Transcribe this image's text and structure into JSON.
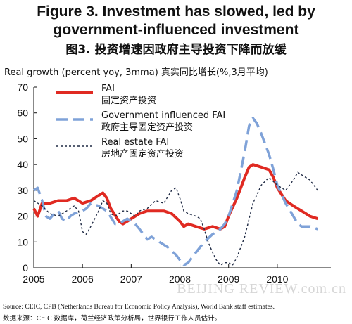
{
  "header": {
    "title_line1": "Figure 3. Investment has slowed, led by",
    "title_line2": "government-influenced investment",
    "title_cn": "图3. 投资增速因政府主导投资下降而放缓"
  },
  "axis": {
    "ylabel": "Real growth (percent yoy, 3mma)  真实同比增长(%,3月平均)"
  },
  "footer": {
    "source_en": "Source: CEIC, CPB (Netherlands Bureau for Economic Policy Analysis), World Bank staff estimates.",
    "source_cn": "数据来源：CEIC 数据库，荷兰经济政策分析局，世界银行工作人员估计。",
    "watermark": "BEIJING REVIEW.com.cn"
  },
  "chart_data": {
    "type": "line",
    "ylabel": "Real growth (percent yoy, 3mma)  真实同比增长(%,3月平均)",
    "xlabel": "",
    "ylim": [
      0,
      70
    ],
    "yticks": [
      0,
      10,
      20,
      30,
      40,
      50,
      60,
      70
    ],
    "xlim": [
      2005,
      2011.1
    ],
    "xticks": [
      2005,
      2006,
      2007,
      2008,
      2009,
      2010
    ],
    "grid": false,
    "legend_position": "top-left",
    "series": [
      {
        "name": "FAI",
        "name_cn": "固定资产投资",
        "color": "#e02a22",
        "style": "solid",
        "points": [
          [
            2005.0,
            23
          ],
          [
            2005.08,
            20
          ],
          [
            2005.17,
            25
          ],
          [
            2005.33,
            25
          ],
          [
            2005.5,
            26
          ],
          [
            2005.67,
            26
          ],
          [
            2005.83,
            27
          ],
          [
            2006.0,
            25
          ],
          [
            2006.17,
            26
          ],
          [
            2006.33,
            28
          ],
          [
            2006.42,
            29
          ],
          [
            2006.5,
            27
          ],
          [
            2006.58,
            23
          ],
          [
            2006.75,
            18
          ],
          [
            2006.83,
            17
          ],
          [
            2006.92,
            18
          ],
          [
            2007.0,
            19
          ],
          [
            2007.17,
            21
          ],
          [
            2007.33,
            22
          ],
          [
            2007.5,
            22
          ],
          [
            2007.67,
            22
          ],
          [
            2007.83,
            21
          ],
          [
            2008.0,
            18
          ],
          [
            2008.08,
            16
          ],
          [
            2008.17,
            17
          ],
          [
            2008.33,
            16
          ],
          [
            2008.5,
            15
          ],
          [
            2008.67,
            16
          ],
          [
            2008.83,
            15
          ],
          [
            2008.92,
            16
          ],
          [
            2009.0,
            20
          ],
          [
            2009.17,
            27
          ],
          [
            2009.33,
            35
          ],
          [
            2009.42,
            39
          ],
          [
            2009.5,
            40
          ],
          [
            2009.67,
            39
          ],
          [
            2009.83,
            38
          ],
          [
            2009.92,
            35
          ],
          [
            2010.0,
            31
          ],
          [
            2010.17,
            26
          ],
          [
            2010.33,
            24
          ],
          [
            2010.5,
            22
          ],
          [
            2010.67,
            20
          ],
          [
            2010.83,
            19
          ]
        ]
      },
      {
        "name": "Government influenced FAI",
        "name_cn": "政府主导固定资产投资",
        "color": "#7fa2d8",
        "style": "dash",
        "points": [
          [
            2005.0,
            30
          ],
          [
            2005.08,
            31
          ],
          [
            2005.17,
            26
          ],
          [
            2005.25,
            20
          ],
          [
            2005.33,
            19
          ],
          [
            2005.42,
            21
          ],
          [
            2005.5,
            22
          ],
          [
            2005.58,
            19
          ],
          [
            2005.67,
            18
          ],
          [
            2005.75,
            20
          ],
          [
            2005.83,
            21
          ],
          [
            2006.0,
            22
          ],
          [
            2006.08,
            23
          ],
          [
            2006.17,
            25
          ],
          [
            2006.33,
            24
          ],
          [
            2006.5,
            22
          ],
          [
            2006.67,
            17
          ],
          [
            2006.75,
            17
          ],
          [
            2006.83,
            18
          ],
          [
            2006.92,
            19
          ],
          [
            2007.0,
            18
          ],
          [
            2007.08,
            17
          ],
          [
            2007.17,
            15
          ],
          [
            2007.25,
            13
          ],
          [
            2007.33,
            11
          ],
          [
            2007.42,
            12
          ],
          [
            2007.58,
            10
          ],
          [
            2007.75,
            8
          ],
          [
            2007.92,
            5
          ],
          [
            2008.0,
            3
          ],
          [
            2008.08,
            1
          ],
          [
            2008.17,
            2
          ],
          [
            2008.33,
            6
          ],
          [
            2008.5,
            10
          ],
          [
            2008.67,
            13
          ],
          [
            2008.83,
            15
          ],
          [
            2008.92,
            17
          ],
          [
            2009.0,
            20
          ],
          [
            2009.17,
            30
          ],
          [
            2009.33,
            45
          ],
          [
            2009.42,
            55
          ],
          [
            2009.5,
            58
          ],
          [
            2009.58,
            56
          ],
          [
            2009.67,
            52
          ],
          [
            2009.83,
            44
          ],
          [
            2009.92,
            38
          ],
          [
            2010.0,
            32
          ],
          [
            2010.17,
            25
          ],
          [
            2010.33,
            20
          ],
          [
            2010.42,
            17
          ],
          [
            2010.5,
            16
          ],
          [
            2010.67,
            16
          ],
          [
            2010.83,
            15
          ]
        ]
      },
      {
        "name": "Real estate FAI",
        "name_cn": "房地产固定资产投资",
        "color": "#1f2a44",
        "style": "dot",
        "points": [
          [
            2005.0,
            26
          ],
          [
            2005.17,
            24
          ],
          [
            2005.33,
            21
          ],
          [
            2005.5,
            20
          ],
          [
            2005.67,
            22
          ],
          [
            2005.83,
            24
          ],
          [
            2005.92,
            22
          ],
          [
            2006.0,
            14
          ],
          [
            2006.08,
            13
          ],
          [
            2006.17,
            16
          ],
          [
            2006.25,
            19
          ],
          [
            2006.33,
            22
          ],
          [
            2006.42,
            26
          ],
          [
            2006.5,
            25
          ],
          [
            2006.58,
            21
          ],
          [
            2006.67,
            20
          ],
          [
            2006.75,
            21
          ],
          [
            2006.83,
            22
          ],
          [
            2006.92,
            22
          ],
          [
            2007.0,
            21
          ],
          [
            2007.08,
            20
          ],
          [
            2007.17,
            22
          ],
          [
            2007.33,
            23
          ],
          [
            2007.5,
            26
          ],
          [
            2007.67,
            25
          ],
          [
            2007.83,
            30
          ],
          [
            2007.92,
            31
          ],
          [
            2008.0,
            27
          ],
          [
            2008.08,
            22
          ],
          [
            2008.17,
            21
          ],
          [
            2008.33,
            20
          ],
          [
            2008.42,
            19
          ],
          [
            2008.5,
            15
          ],
          [
            2008.58,
            10
          ],
          [
            2008.67,
            6
          ],
          [
            2008.75,
            3
          ],
          [
            2008.83,
            1
          ],
          [
            2008.92,
            2
          ],
          [
            2009.0,
            2
          ],
          [
            2009.08,
            1
          ],
          [
            2009.17,
            4
          ],
          [
            2009.33,
            12
          ],
          [
            2009.5,
            25
          ],
          [
            2009.67,
            32
          ],
          [
            2009.83,
            35
          ],
          [
            2010.0,
            32
          ],
          [
            2010.17,
            30
          ],
          [
            2010.33,
            34
          ],
          [
            2010.42,
            37
          ],
          [
            2010.5,
            36
          ],
          [
            2010.67,
            34
          ],
          [
            2010.75,
            32
          ],
          [
            2010.83,
            30
          ]
        ]
      }
    ]
  }
}
